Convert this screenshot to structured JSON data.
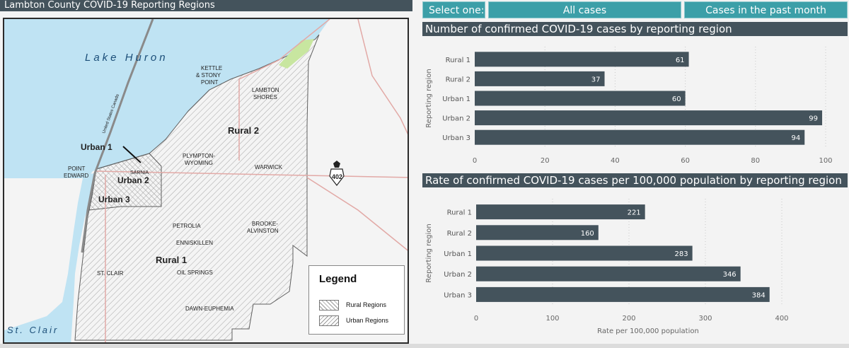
{
  "map": {
    "title": "Lambton County COVID-19 Reporting Regions",
    "labels": {
      "lake_huron": "Lake Huron",
      "st_clair": "St. Clair",
      "border_line": "United States Canada",
      "kettle_stony_point": [
        "KETTLE",
        "& STONY",
        "POINT"
      ],
      "lambton_shores": [
        "LAMBTON",
        "SHORES"
      ],
      "rural2": "Rural 2",
      "urban1": "Urban 1",
      "point_edward": [
        "POINT",
        "EDWARD"
      ],
      "sarnia": "SARNIA",
      "urban2": "Urban 2",
      "urban3": "Urban 3",
      "plympton_wyoming": [
        "PLYMPTON-",
        "WYOMING"
      ],
      "warwick": "WARWICK",
      "highway": "402",
      "petrolia": "PETROLIA",
      "brooke_alvinston": [
        "BROOKE-",
        "ALVINSTON"
      ],
      "enniskillen": "ENNISKILLEN",
      "rural1": "Rural 1",
      "st_clair_twp": "ST. CLAIR",
      "oil_springs": "OIL SPRINGS",
      "dawn_euphemia": "DAWN-EUPHEMIA"
    },
    "legend": {
      "title": "Legend",
      "rural": "Rural Regions",
      "urban": "Urban Regions"
    },
    "colors": {
      "water": "#bfe3f3",
      "park": "#c8e6a0",
      "road": "#e2a9a6"
    }
  },
  "selector": {
    "label": "Select one:",
    "options": [
      "All cases",
      "Cases in the past month"
    ],
    "selected": "All cases"
  },
  "charts": {
    "cases_title": "Number of confirmed COVID-19 cases by reporting region",
    "rate_title": "Rate of confirmed COVID-19 cases per 100,000 population by reporting region"
  },
  "chart_data": [
    {
      "type": "bar",
      "orientation": "horizontal",
      "title": "Number of confirmed COVID-19 cases by reporting region",
      "categories": [
        "Rural 1",
        "Rural 2",
        "Urban 1",
        "Urban 2",
        "Urban 3"
      ],
      "values": [
        61,
        37,
        60,
        99,
        94
      ],
      "xlabel": "",
      "ylabel": "Reporting region",
      "xlim": [
        0,
        100
      ],
      "xticks": [
        0,
        20,
        40,
        60,
        80,
        100
      ],
      "grid": true,
      "bar_color": "#44535c"
    },
    {
      "type": "bar",
      "orientation": "horizontal",
      "title": "Rate of confirmed COVID-19 cases per 100,000 population by reporting region",
      "categories": [
        "Rural 1",
        "Rural 2",
        "Urban 1",
        "Urban 2",
        "Urban 3"
      ],
      "values": [
        221,
        160,
        283,
        346,
        384
      ],
      "xlabel": "Rate per 100,000 population",
      "ylabel": "Reporting region",
      "xlim": [
        0,
        450
      ],
      "xticks": [
        0,
        100,
        200,
        300,
        400
      ],
      "grid": true,
      "bar_color": "#44535c"
    }
  ]
}
